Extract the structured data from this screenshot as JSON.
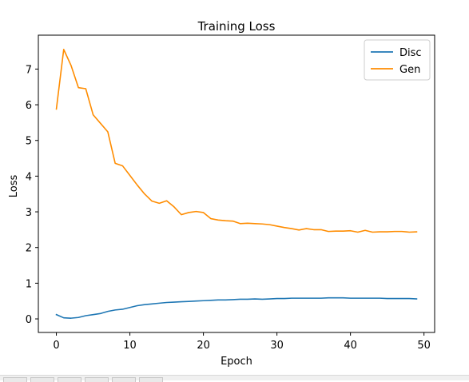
{
  "chart_data": {
    "type": "line",
    "title": "Training Loss",
    "xlabel": "Epoch",
    "ylabel": "Loss",
    "xlim": [
      -2.45,
      51.45
    ],
    "ylim": [
      -0.38,
      7.95
    ],
    "xticks": [
      0,
      10,
      20,
      30,
      40,
      50
    ],
    "yticks": [
      0,
      1,
      2,
      3,
      4,
      5,
      6,
      7
    ],
    "grid": false,
    "legend_position": "top-right",
    "x": [
      0,
      1,
      2,
      3,
      4,
      5,
      6,
      7,
      8,
      9,
      10,
      11,
      12,
      13,
      14,
      15,
      16,
      17,
      18,
      19,
      20,
      21,
      22,
      23,
      24,
      25,
      26,
      27,
      28,
      29,
      30,
      31,
      32,
      33,
      34,
      35,
      36,
      37,
      38,
      39,
      40,
      41,
      42,
      43,
      44,
      45,
      46,
      47,
      48,
      49
    ],
    "series": [
      {
        "name": "Disc",
        "color": "#1f77b4",
        "values": [
          0.12,
          0.03,
          0.02,
          0.04,
          0.09,
          0.12,
          0.15,
          0.21,
          0.25,
          0.27,
          0.32,
          0.37,
          0.4,
          0.42,
          0.44,
          0.46,
          0.47,
          0.48,
          0.49,
          0.5,
          0.51,
          0.52,
          0.53,
          0.53,
          0.54,
          0.55,
          0.55,
          0.56,
          0.55,
          0.56,
          0.57,
          0.57,
          0.58,
          0.58,
          0.58,
          0.58,
          0.58,
          0.59,
          0.59,
          0.59,
          0.58,
          0.58,
          0.58,
          0.58,
          0.58,
          0.57,
          0.57,
          0.57,
          0.57,
          0.56
        ]
      },
      {
        "name": "Gen",
        "color": "#ff8c00",
        "values": [
          5.88,
          7.55,
          7.1,
          6.48,
          6.45,
          5.72,
          5.48,
          5.24,
          4.36,
          4.29,
          4.02,
          3.75,
          3.5,
          3.3,
          3.24,
          3.31,
          3.14,
          2.92,
          2.98,
          3.01,
          2.98,
          2.81,
          2.77,
          2.75,
          2.74,
          2.67,
          2.68,
          2.67,
          2.66,
          2.64,
          2.6,
          2.56,
          2.53,
          2.49,
          2.53,
          2.5,
          2.5,
          2.45,
          2.46,
          2.46,
          2.47,
          2.43,
          2.48,
          2.43,
          2.44,
          2.44,
          2.45,
          2.45,
          2.43,
          2.44
        ]
      }
    ]
  }
}
